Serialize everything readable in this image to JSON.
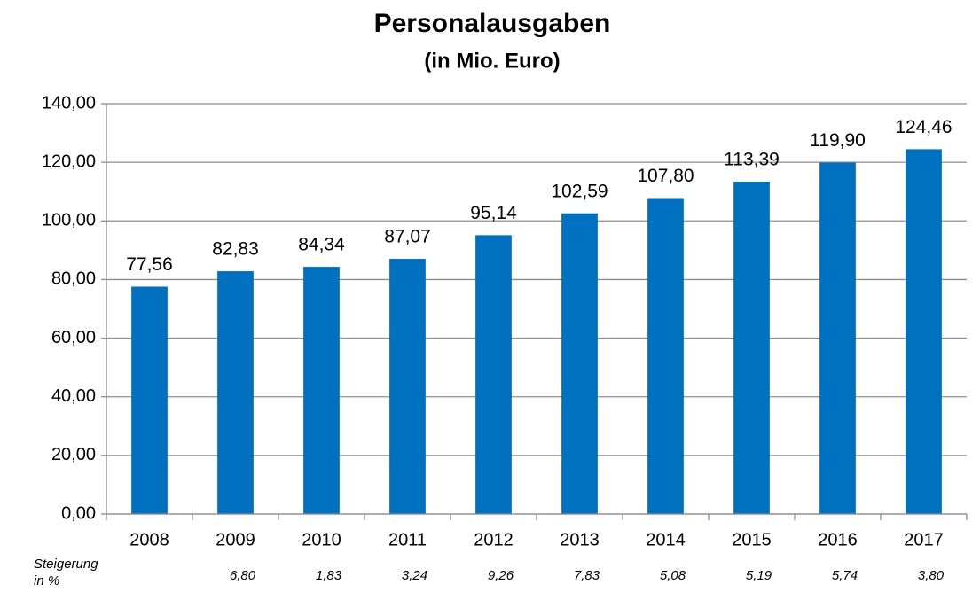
{
  "chart_data": {
    "type": "bar",
    "title": "Personalausgaben",
    "subtitle": "(in Mio. Euro)",
    "categories": [
      "2008",
      "2009",
      "2010",
      "2011",
      "2012",
      "2013",
      "2014",
      "2015",
      "2016",
      "2017"
    ],
    "values": [
      77.56,
      82.83,
      84.34,
      87.07,
      95.14,
      102.59,
      107.8,
      113.39,
      119.9,
      124.46
    ],
    "value_labels": [
      "77,56",
      "82,83",
      "84,34",
      "87,07",
      "95,14",
      "102,59",
      "107,80",
      "113,39",
      "119,90",
      "124,46"
    ],
    "color": "#0070c0",
    "ylim": [
      0,
      140
    ],
    "yticks": [
      {
        "value": 0,
        "label": "0,00"
      },
      {
        "value": 20,
        "label": "20,00"
      },
      {
        "value": 40,
        "label": "40,00"
      },
      {
        "value": 60,
        "label": "60,00"
      },
      {
        "value": 80,
        "label": "80,00"
      },
      {
        "value": 100,
        "label": "100,00"
      },
      {
        "value": 120,
        "label": "120,00"
      },
      {
        "value": 140,
        "label": "140,00"
      }
    ],
    "grid": true,
    "growth": {
      "label": [
        "Steigerung",
        "in %"
      ],
      "values": [
        null,
        6.8,
        1.83,
        3.24,
        9.26,
        7.83,
        5.08,
        5.19,
        5.74,
        3.8
      ],
      "value_labels": [
        null,
        "6,80",
        "1,83",
        "3,24",
        "9,26",
        "7,83",
        "5,08",
        "5,19",
        "5,74",
        "3,80"
      ]
    }
  }
}
